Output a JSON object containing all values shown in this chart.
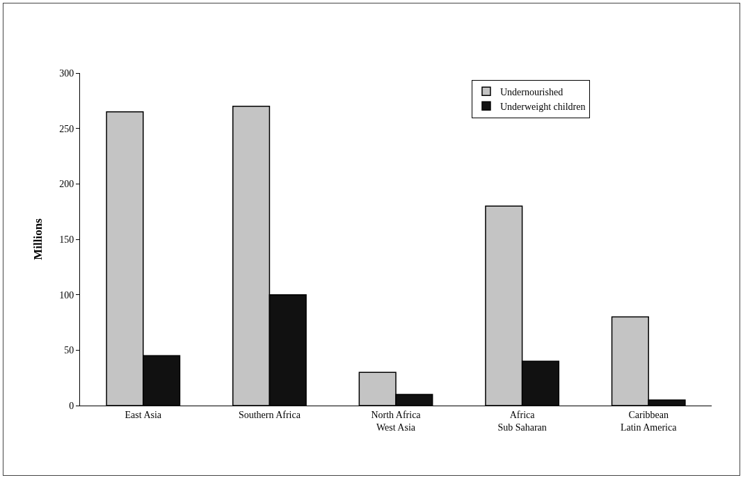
{
  "chart_data": {
    "type": "bar",
    "ylabel": "Millions",
    "categories": [
      "East Asia",
      "Southern Africa",
      "North Africa\nWest Asia",
      "Africa\nSub Saharan",
      "Caribbean\nLatin America"
    ],
    "series": [
      {
        "name": "Undernourished",
        "color": "#c4c4c4",
        "values": [
          265,
          270,
          30,
          180,
          80
        ]
      },
      {
        "name": "Underweight children",
        "color": "#111111",
        "values": [
          45,
          100,
          10,
          40,
          5
        ]
      }
    ],
    "ylim": [
      0,
      300
    ],
    "yticks": [
      0,
      50,
      100,
      150,
      200,
      250,
      300
    ],
    "grid": false,
    "legend": "top right"
  }
}
